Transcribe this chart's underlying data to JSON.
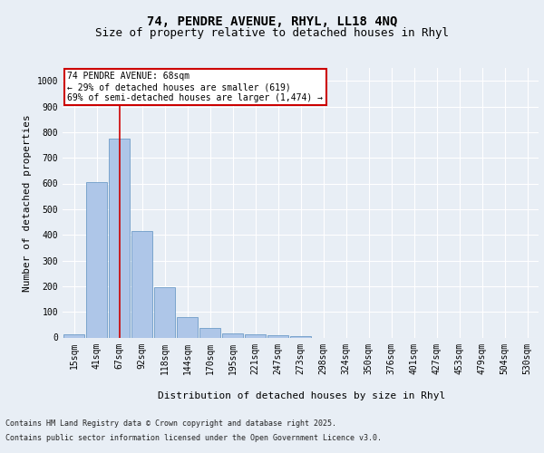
{
  "title_line1": "74, PENDRE AVENUE, RHYL, LL18 4NQ",
  "title_line2": "Size of property relative to detached houses in Rhyl",
  "xlabel": "Distribution of detached houses by size in Rhyl",
  "ylabel": "Number of detached properties",
  "categories": [
    "15sqm",
    "41sqm",
    "67sqm",
    "92sqm",
    "118sqm",
    "144sqm",
    "170sqm",
    "195sqm",
    "221sqm",
    "247sqm",
    "273sqm",
    "298sqm",
    "324sqm",
    "350sqm",
    "376sqm",
    "401sqm",
    "427sqm",
    "453sqm",
    "479sqm",
    "504sqm",
    "530sqm"
  ],
  "values": [
    13,
    605,
    775,
    413,
    195,
    79,
    38,
    16,
    14,
    10,
    4,
    0,
    0,
    0,
    0,
    0,
    0,
    0,
    0,
    0,
    0
  ],
  "bar_color": "#aec6e8",
  "bar_edge_color": "#5a8fc0",
  "vline_x_index": 2,
  "vline_color": "#cc0000",
  "annotation_line1": "74 PENDRE AVENUE: 68sqm",
  "annotation_line2": "← 29% of detached houses are smaller (619)",
  "annotation_line3": "69% of semi-detached houses are larger (1,474) →",
  "annotation_box_color": "#cc0000",
  "ylim": [
    0,
    1050
  ],
  "yticks": [
    0,
    100,
    200,
    300,
    400,
    500,
    600,
    700,
    800,
    900,
    1000
  ],
  "bg_color": "#e8eef5",
  "plot_bg_color": "#e8eef5",
  "grid_color": "#ffffff",
  "footer_line1": "Contains HM Land Registry data © Crown copyright and database right 2025.",
  "footer_line2": "Contains public sector information licensed under the Open Government Licence v3.0.",
  "title_fontsize": 10,
  "subtitle_fontsize": 9,
  "axis_label_fontsize": 8,
  "tick_fontsize": 7,
  "annotation_fontsize": 7,
  "footer_fontsize": 6
}
